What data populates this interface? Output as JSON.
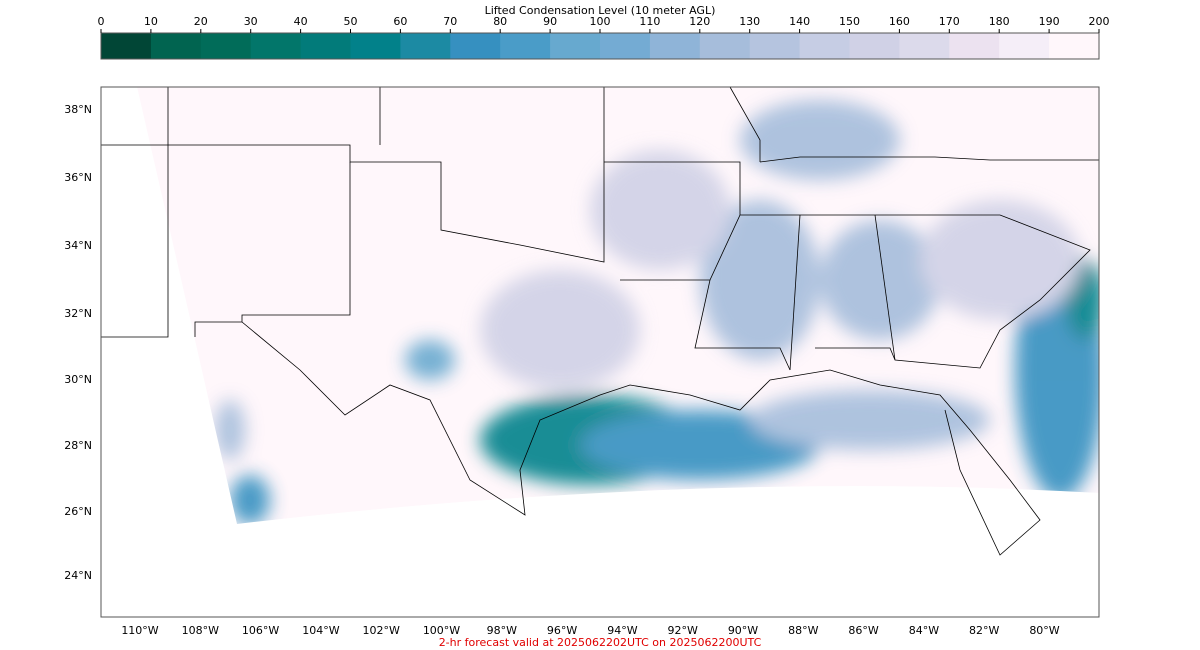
{
  "colorbar": {
    "title": "Lifted Condensation Level (10 meter AGL)",
    "range": [
      0,
      200
    ],
    "ticks": [
      0,
      10,
      20,
      30,
      40,
      50,
      60,
      70,
      80,
      90,
      100,
      110,
      120,
      130,
      140,
      150,
      160,
      170,
      180,
      190,
      200
    ],
    "colors": [
      "#014636",
      "#016450",
      "#016c59",
      "#02766a",
      "#027b7a",
      "#02818a",
      "#1c8aa3",
      "#3690c0",
      "#4a9cc8",
      "#67a9cf",
      "#74abd3",
      "#8fb4d8",
      "#a6bddb",
      "#b5c4df",
      "#c6cde4",
      "#d0d1e6",
      "#dcdaeb",
      "#ece2f0",
      "#f5eef8",
      "#fff7fb"
    ]
  },
  "map": {
    "lat_labels": [
      "38°N",
      "36°N",
      "34°N",
      "32°N",
      "30°N",
      "28°N",
      "26°N",
      "24°N"
    ],
    "lon_labels": [
      "110°W",
      "108°W",
      "106°W",
      "104°W",
      "102°W",
      "100°W",
      "98°W",
      "96°W",
      "94°W",
      "92°W",
      "90°W",
      "88°W",
      "86°W",
      "84°W",
      "82°W",
      "80°W"
    ]
  },
  "footer": "2-hr forecast valid at 2025062202UTC on 2025062200UTC"
}
